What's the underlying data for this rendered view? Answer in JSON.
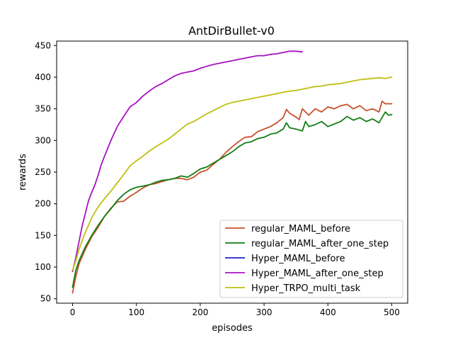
{
  "chart_data": {
    "type": "line",
    "title": "AntDirBullet-v0",
    "xlabel": "episodes",
    "ylabel": "rewards",
    "xlim": [
      -25,
      525
    ],
    "ylim": [
      43,
      457
    ],
    "xticks": [
      0,
      100,
      200,
      300,
      400,
      500
    ],
    "yticks": [
      50,
      100,
      150,
      200,
      250,
      300,
      350,
      400,
      450
    ],
    "grid": false,
    "legend_position": "lower-right",
    "series": [
      {
        "name": "regular_MAML_before",
        "color": "#c8502a",
        "x": [
          0,
          5,
          10,
          20,
          30,
          40,
          50,
          60,
          70,
          80,
          90,
          100,
          110,
          120,
          130,
          140,
          150,
          160,
          170,
          180,
          190,
          200,
          210,
          220,
          230,
          240,
          250,
          260,
          270,
          280,
          290,
          300,
          310,
          320,
          330,
          335,
          340,
          350,
          355,
          360,
          370,
          380,
          390,
          400,
          410,
          420,
          430,
          440,
          450,
          460,
          470,
          480,
          485,
          490,
          500
        ],
        "y": [
          59,
          85,
          105,
          128,
          148,
          163,
          180,
          193,
          203,
          204,
          212,
          218,
          225,
          230,
          232,
          235,
          238,
          240,
          240,
          238,
          242,
          250,
          253,
          262,
          270,
          281,
          290,
          298,
          305,
          306,
          314,
          318,
          322,
          328,
          336,
          349,
          343,
          337,
          333,
          350,
          340,
          350,
          345,
          353,
          350,
          355,
          357,
          350,
          355,
          347,
          350,
          345,
          362,
          358,
          358
        ]
      },
      {
        "name": "regular_MAML_after_one_step",
        "color": "#127d12",
        "x": [
          0,
          5,
          10,
          20,
          30,
          40,
          50,
          60,
          70,
          80,
          90,
          100,
          110,
          120,
          130,
          140,
          150,
          160,
          170,
          180,
          190,
          200,
          210,
          220,
          230,
          240,
          250,
          260,
          270,
          280,
          290,
          300,
          310,
          320,
          330,
          335,
          340,
          350,
          360,
          365,
          370,
          380,
          390,
          400,
          410,
          420,
          430,
          440,
          450,
          460,
          470,
          480,
          490,
          495,
          500
        ],
        "y": [
          68,
          95,
          110,
          132,
          150,
          166,
          180,
          192,
          205,
          215,
          222,
          226,
          228,
          230,
          234,
          237,
          238,
          240,
          244,
          242,
          248,
          255,
          258,
          264,
          270,
          276,
          282,
          290,
          296,
          298,
          303,
          305,
          310,
          312,
          318,
          328,
          320,
          318,
          315,
          330,
          322,
          325,
          330,
          322,
          326,
          330,
          338,
          332,
          336,
          330,
          334,
          328,
          345,
          340,
          341
        ]
      },
      {
        "name": "Hyper_MAML_before",
        "color": "#1f1fd2",
        "x": [],
        "y": []
      },
      {
        "name": "Hyper_MAML_after_one_step",
        "color": "#a612c2",
        "x": [
          0,
          5,
          10,
          15,
          20,
          25,
          30,
          35,
          40,
          45,
          50,
          60,
          70,
          80,
          90,
          100,
          110,
          120,
          130,
          140,
          150,
          160,
          170,
          180,
          190,
          200,
          210,
          220,
          230,
          240,
          250,
          260,
          270,
          280,
          290,
          300,
          310,
          320,
          330,
          340,
          350,
          360
        ],
        "y": [
          93,
          115,
          140,
          165,
          185,
          205,
          218,
          230,
          245,
          262,
          275,
          300,
          322,
          338,
          353,
          360,
          370,
          378,
          385,
          390,
          396,
          402,
          406,
          408,
          410,
          414,
          417,
          420,
          422,
          424,
          426,
          428,
          430,
          432,
          434,
          434,
          436,
          437,
          439,
          441,
          441,
          440
        ]
      },
      {
        "name": "Hyper_TRPO_multi_task",
        "color": "#bfbf12",
        "x": [
          0,
          5,
          10,
          20,
          30,
          40,
          50,
          60,
          70,
          80,
          90,
          100,
          110,
          120,
          130,
          140,
          150,
          160,
          170,
          180,
          190,
          200,
          210,
          220,
          230,
          240,
          250,
          260,
          270,
          280,
          290,
          300,
          310,
          320,
          330,
          340,
          350,
          360,
          370,
          380,
          390,
          400,
          410,
          420,
          430,
          440,
          450,
          460,
          470,
          480,
          490,
          500
        ],
        "y": [
          95,
          110,
          128,
          155,
          178,
          195,
          208,
          220,
          233,
          246,
          260,
          268,
          275,
          283,
          290,
          296,
          302,
          310,
          318,
          326,
          330,
          336,
          342,
          347,
          352,
          357,
          360,
          362,
          364,
          366,
          368,
          370,
          372,
          374,
          376,
          378,
          379,
          381,
          383,
          385,
          386,
          388,
          389,
          390,
          392,
          394,
          396,
          397,
          398,
          399,
          398,
          400
        ]
      }
    ]
  }
}
